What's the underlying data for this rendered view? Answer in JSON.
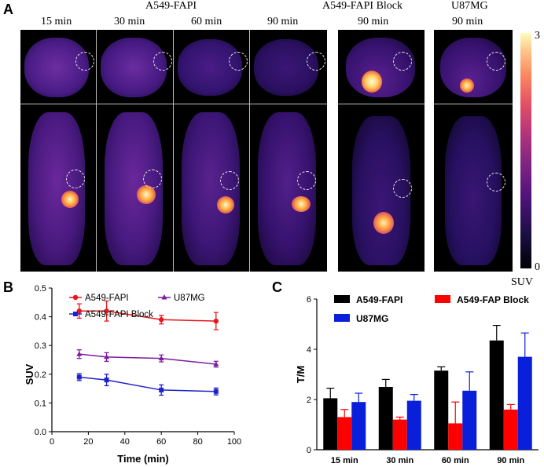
{
  "panels": {
    "a": "A",
    "b": "B",
    "c": "C"
  },
  "group_labels": {
    "fapi": "A549-FAPI",
    "block": "A549-FAPI Block",
    "u87": "U87MG"
  },
  "timepoints": [
    "15 min",
    "30 min",
    "60 min",
    "90 min"
  ],
  "block_time": "90 min",
  "u87_time": "90 min",
  "colorbar": {
    "max": "3",
    "min": "0",
    "unit": "SUV"
  },
  "colors": {
    "fapi": "#e8161b",
    "block": "#1f22c8",
    "u87": "#7a1ca0",
    "c_fapi": "#000000",
    "c_block": "#ff0000",
    "c_u87": "#0a1fd9"
  },
  "chart_data": [
    {
      "id": "B",
      "type": "line",
      "x": [
        15,
        30,
        60,
        90
      ],
      "series": [
        {
          "name": "A549-FAPI",
          "values": [
            0.42,
            0.42,
            0.39,
            0.385
          ],
          "errors": [
            0.025,
            0.035,
            0.015,
            0.03
          ]
        },
        {
          "name": "U87MG",
          "values": [
            0.27,
            0.26,
            0.255,
            0.235
          ],
          "errors": [
            0.015,
            0.015,
            0.012,
            0.01
          ]
        },
        {
          "name": "A549-FAPI Block",
          "values": [
            0.19,
            0.18,
            0.145,
            0.14
          ],
          "errors": [
            0.012,
            0.02,
            0.018,
            0.012
          ]
        }
      ],
      "xlabel": "Time (min)",
      "ylabel": "SUV",
      "xlim": [
        0,
        100
      ],
      "ylim": [
        0,
        0.5
      ],
      "xticks": [
        "0",
        "20",
        "40",
        "60",
        "80",
        "100"
      ],
      "yticks": [
        "0.0",
        "0.1",
        "0.2",
        "0.3",
        "0.4",
        "0.5"
      ]
    },
    {
      "id": "C",
      "type": "bar",
      "categories": [
        "15 min",
        "30 min",
        "60 min",
        "90 min"
      ],
      "series": [
        {
          "name": "A549-FAPI",
          "values": [
            2.05,
            2.5,
            3.15,
            4.35
          ],
          "errors": [
            0.4,
            0.3,
            0.15,
            0.6
          ]
        },
        {
          "name": "A549-FAP Block",
          "values": [
            1.3,
            1.2,
            1.05,
            1.6
          ],
          "errors": [
            0.3,
            0.1,
            0.85,
            0.2
          ]
        },
        {
          "name": "U87MG",
          "values": [
            1.9,
            1.95,
            2.35,
            3.7
          ],
          "errors": [
            0.35,
            0.25,
            0.75,
            0.95
          ]
        }
      ],
      "ylabel": "T/M",
      "ylim": [
        0,
        6
      ],
      "yticks": [
        "0",
        "2",
        "4",
        "6"
      ]
    }
  ]
}
